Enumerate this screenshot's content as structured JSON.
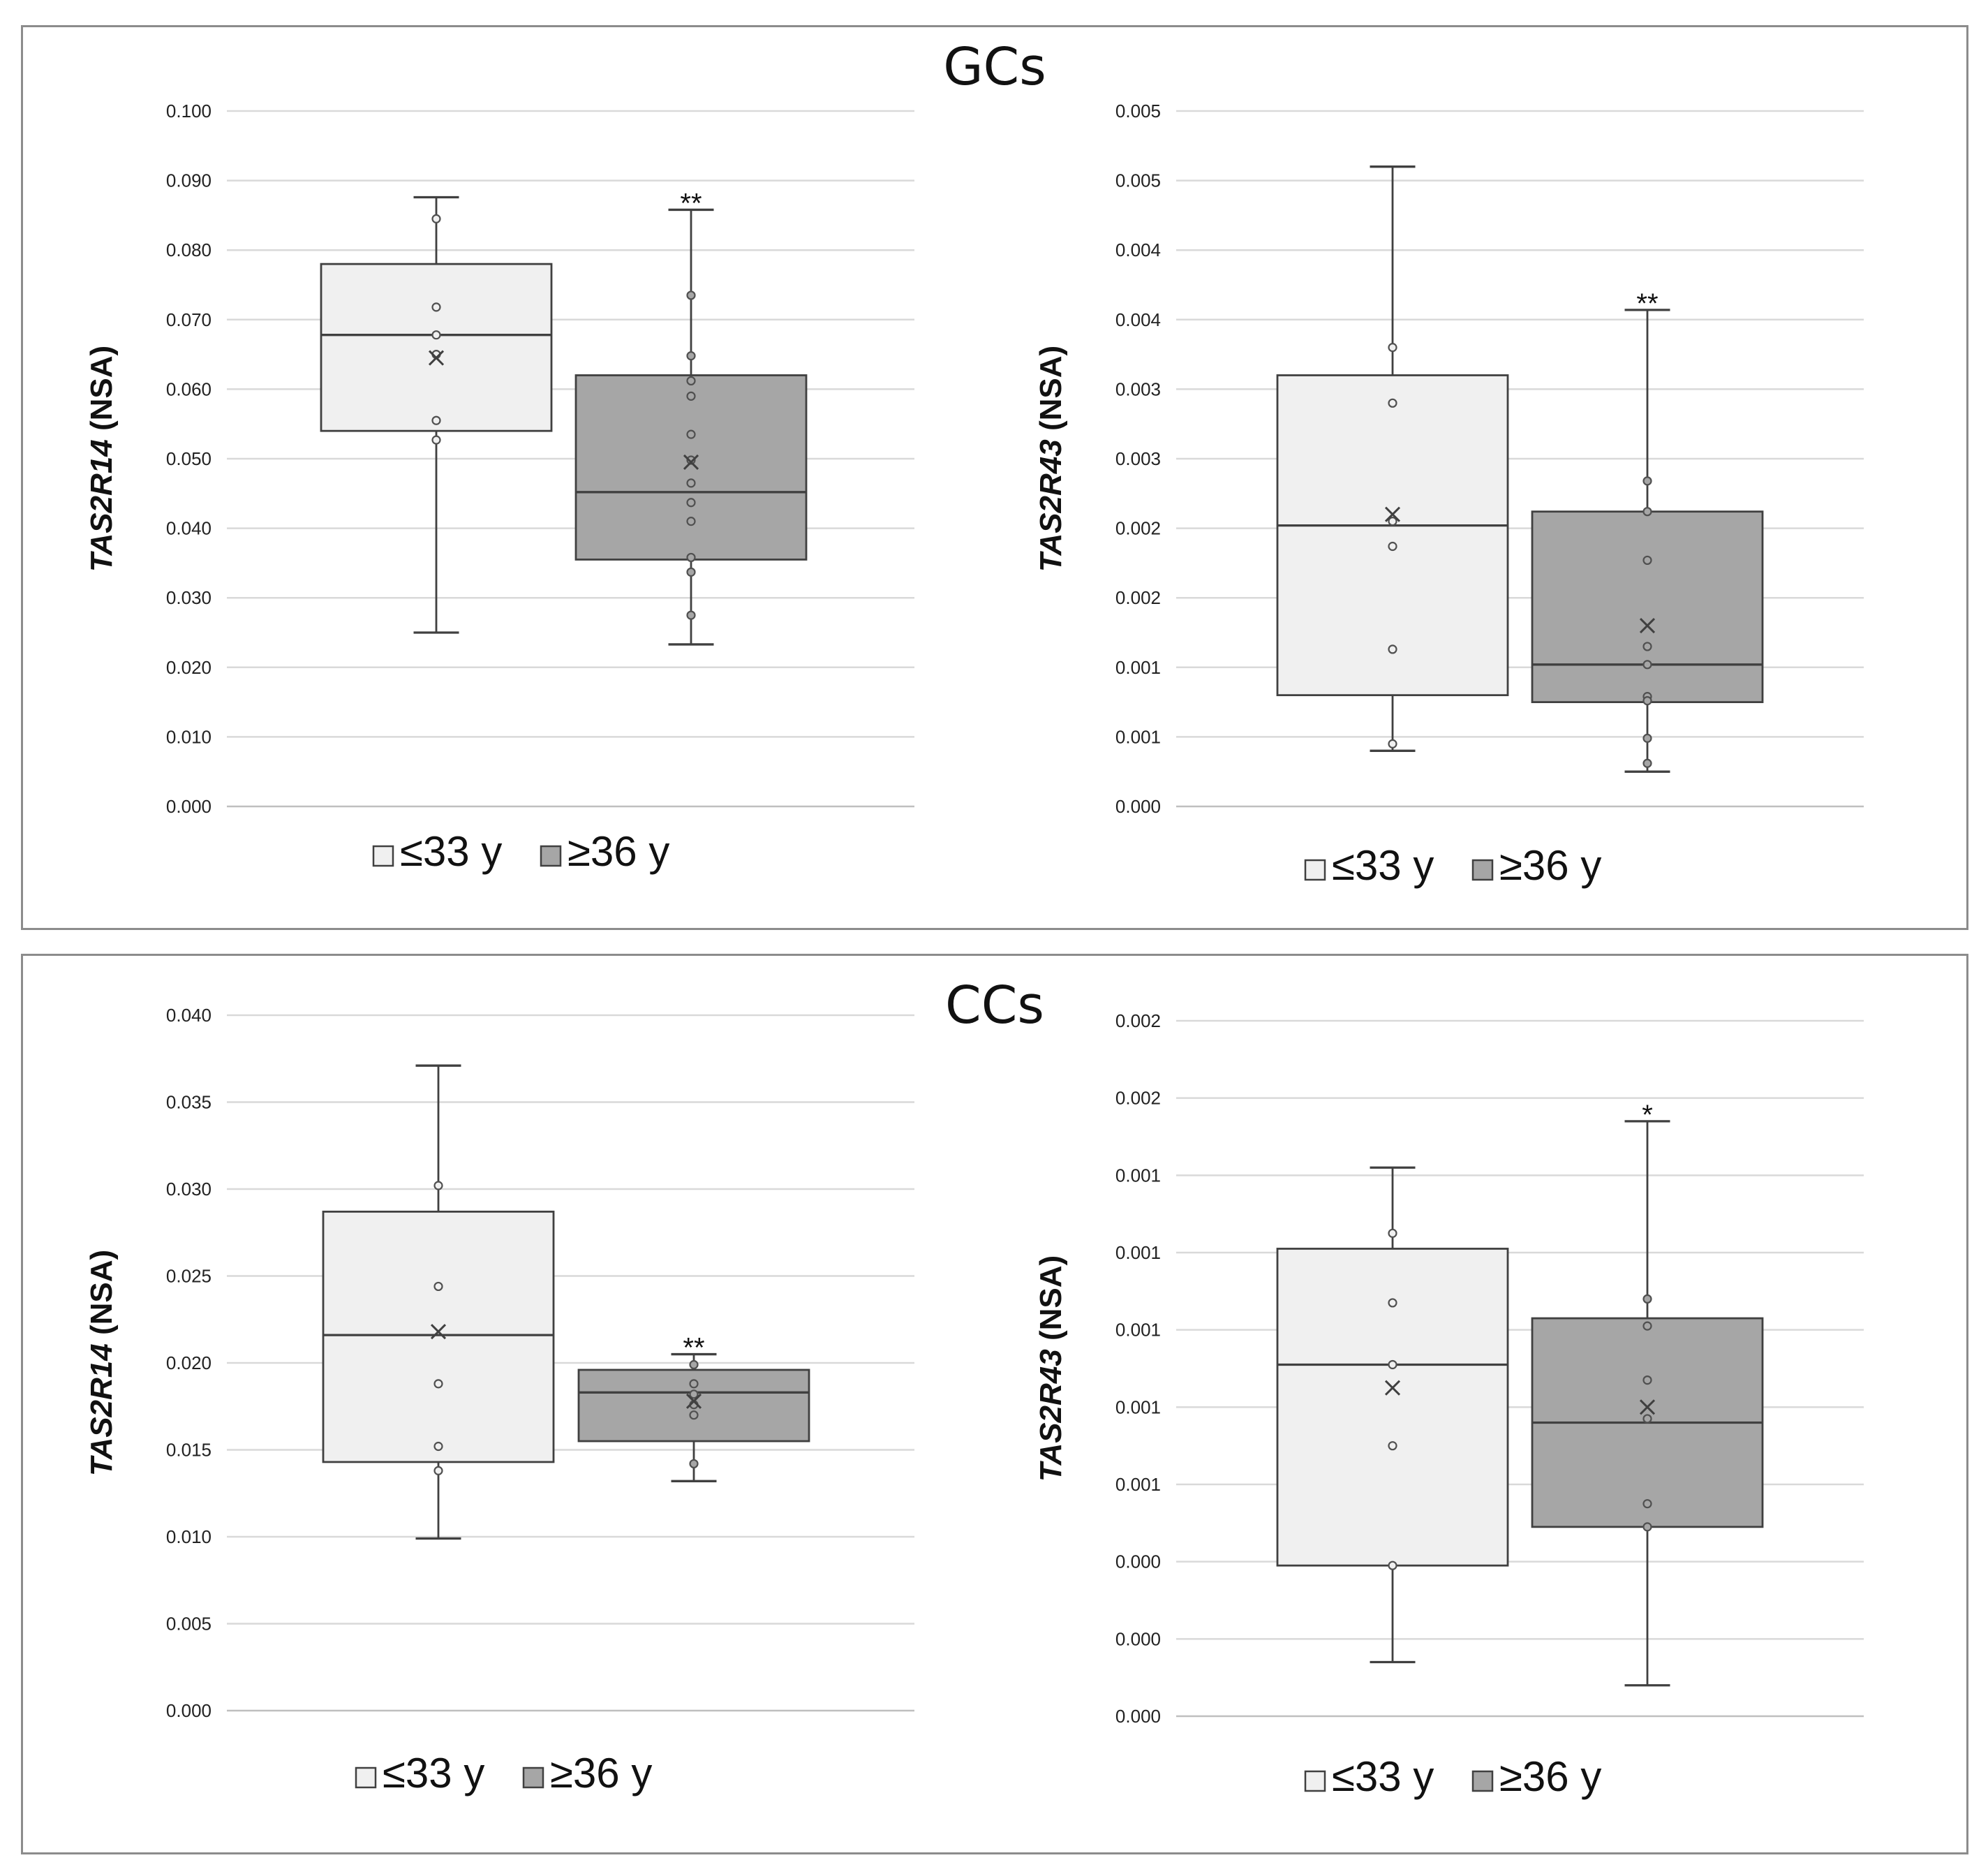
{
  "panels": [
    {
      "title": "GCs"
    },
    {
      "title": "CCs"
    }
  ],
  "legend": {
    "group1": "≤33 y",
    "group2": "≥36 y"
  },
  "colors": {
    "group1": "#f0f0f0",
    "group2": "#a6a6a6",
    "stroke": "#404040",
    "grid": "#d9d9d9"
  },
  "chart_data": [
    {
      "type": "boxplot",
      "panel": "GCs",
      "gene": "TAS2R14",
      "ylabel_suffix": " (NSA)",
      "ylim": [
        0,
        0.1
      ],
      "yticks": [
        0,
        0.01,
        0.02,
        0.03,
        0.04,
        0.05,
        0.06,
        0.07,
        0.08,
        0.09,
        0.1
      ],
      "yticklabels": [
        "0.000",
        "0.010",
        "0.020",
        "0.030",
        "0.040",
        "0.050",
        "0.060",
        "0.070",
        "0.080",
        "0.090",
        "0.100"
      ],
      "groups": [
        {
          "name": "≤33 y",
          "min": 0.025,
          "q1": 0.054,
          "median": 0.0678,
          "q3": 0.078,
          "max": 0.0876,
          "mean": 0.0645,
          "points": [
            0.0845,
            0.0718,
            0.0678,
            0.065,
            0.0555,
            0.0527
          ],
          "sig": ""
        },
        {
          "name": "≥36 y",
          "min": 0.0233,
          "q1": 0.0355,
          "median": 0.0452,
          "q3": 0.062,
          "max": 0.0858,
          "mean": 0.0495,
          "points": [
            0.0735,
            0.0648,
            0.0612,
            0.059,
            0.0535,
            0.0498,
            0.0465,
            0.0437,
            0.041,
            0.0358,
            0.0337,
            0.0275
          ],
          "sig": "**"
        }
      ]
    },
    {
      "type": "boxplot",
      "panel": "GCs",
      "gene": "TAS2R43",
      "ylabel_suffix": " (NSA)",
      "ylim": [
        0,
        0.005
      ],
      "yticks": [
        0,
        0.0005,
        0.001,
        0.0015,
        0.002,
        0.0025,
        0.003,
        0.0035,
        0.004,
        0.0045,
        0.005
      ],
      "yticklabels": [
        "0.000",
        "0.001",
        "0.001",
        "0.002",
        "0.002",
        "0.003",
        "0.003",
        "0.004",
        "0.004",
        "0.005",
        "0.005"
      ],
      "groups": [
        {
          "name": "≤33 y",
          "min": 0.0004,
          "q1": 0.0008,
          "median": 0.00202,
          "q3": 0.0031,
          "max": 0.0046,
          "mean": 0.0021,
          "points": [
            0.0033,
            0.0029,
            0.00205,
            0.00187,
            0.00113,
            0.00045
          ],
          "sig": ""
        },
        {
          "name": "≥36 y",
          "min": 0.00025,
          "q1": 0.00075,
          "median": 0.00102,
          "q3": 0.00212,
          "max": 0.00357,
          "mean": 0.0013,
          "points": [
            0.00234,
            0.00212,
            0.00177,
            0.00115,
            0.00102,
            0.00079,
            0.00076,
            0.00049,
            0.00031
          ],
          "sig": "**"
        }
      ]
    },
    {
      "type": "boxplot",
      "panel": "CCs",
      "gene": "TAS2R14",
      "ylabel_suffix": " (NSA)",
      "ylim": [
        0,
        0.04
      ],
      "yticks": [
        0,
        0.005,
        0.01,
        0.015,
        0.02,
        0.025,
        0.03,
        0.035,
        0.04
      ],
      "yticklabels": [
        "0.000",
        "0.005",
        "0.010",
        "0.015",
        "0.020",
        "0.025",
        "0.030",
        "0.035",
        "0.040"
      ],
      "groups": [
        {
          "name": "≤33 y",
          "min": 0.0099,
          "q1": 0.0143,
          "median": 0.0216,
          "q3": 0.0287,
          "max": 0.0371,
          "mean": 0.0218,
          "points": [
            0.0302,
            0.0244,
            0.0188,
            0.0152,
            0.0138
          ],
          "sig": ""
        },
        {
          "name": "≥36 y",
          "min": 0.0132,
          "q1": 0.0155,
          "median": 0.0183,
          "q3": 0.0196,
          "max": 0.0205,
          "mean": 0.0178,
          "points": [
            0.0199,
            0.0188,
            0.0182,
            0.0176,
            0.017,
            0.0142
          ],
          "sig": "**"
        }
      ]
    },
    {
      "type": "boxplot",
      "panel": "CCs",
      "gene": "TAS2R43",
      "ylabel_suffix": " (NSA)",
      "ylim": [
        0,
        0.0018
      ],
      "yticks": [
        0,
        0.0002,
        0.0004,
        0.0006,
        0.0008,
        0.001,
        0.0012,
        0.0014,
        0.0016,
        0.0018
      ],
      "yticklabels": [
        "0.000",
        "0.000",
        "0.000",
        "0.001",
        "0.001",
        "0.001",
        "0.001",
        "0.001",
        "0.002",
        "0.002"
      ],
      "groups": [
        {
          "name": "≤33 y",
          "min": 0.00014,
          "q1": 0.00039,
          "median": 0.00091,
          "q3": 0.00121,
          "max": 0.00142,
          "mean": 0.00085,
          "points": [
            0.00125,
            0.00107,
            0.00091,
            0.0007,
            0.00039
          ],
          "sig": ""
        },
        {
          "name": "≥36 y",
          "min": 8e-05,
          "q1": 0.00049,
          "median": 0.00076,
          "q3": 0.00103,
          "max": 0.00154,
          "mean": 0.0008,
          "points": [
            0.00108,
            0.00101,
            0.00087,
            0.00077,
            0.00055,
            0.00049
          ],
          "sig": "*"
        }
      ]
    }
  ]
}
